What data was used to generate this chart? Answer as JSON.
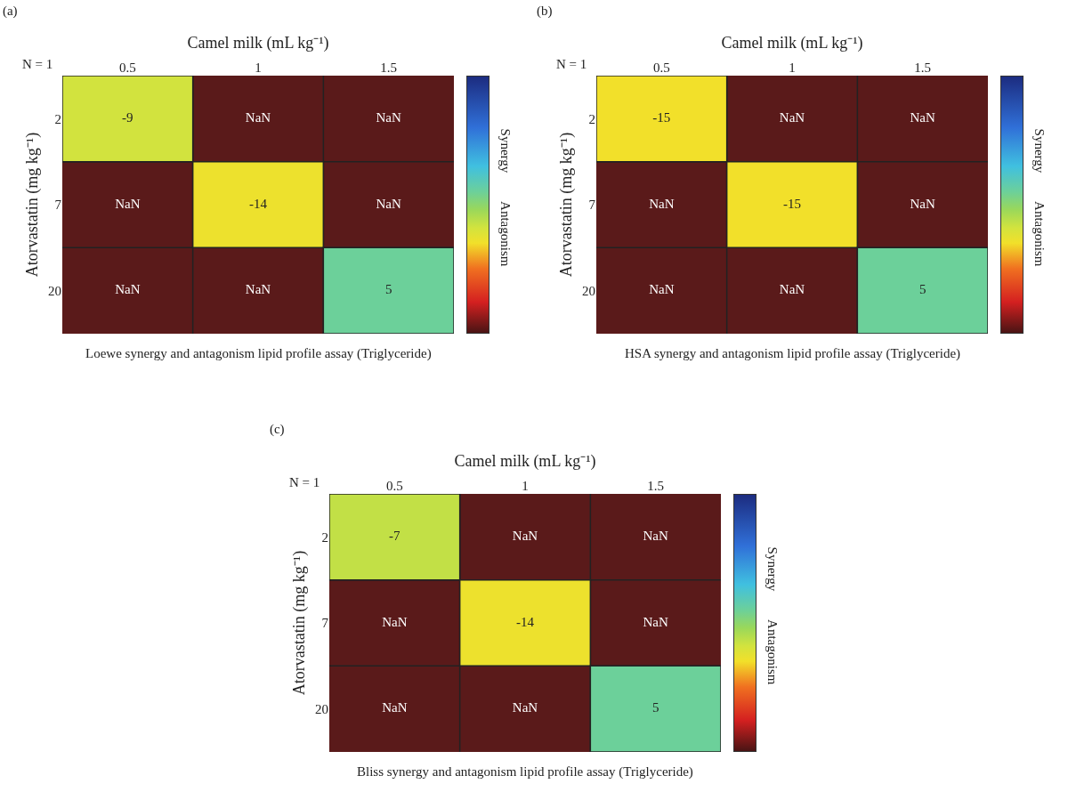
{
  "chart_data": [
    {
      "type": "heatmap",
      "title": "(a)",
      "xlabel": "Camel milk (mL kg⁻¹)",
      "ylabel": "Atorvastatin (mg kg⁻¹)",
      "subtitle": "Loewe synergy and antagonism lipid profile assay (Triglyceride)",
      "categories": [
        "0.5",
        "1",
        "1.5"
      ],
      "y_categories": [
        "2",
        "7",
        "20"
      ],
      "cells": [
        [
          -9,
          null,
          null
        ],
        [
          null,
          -14,
          null
        ],
        [
          null,
          null,
          5
        ]
      ],
      "cell_labels": [
        [
          "-9",
          "NaN",
          "NaN"
        ],
        [
          "NaN",
          "-14",
          "NaN"
        ],
        [
          "NaN",
          "NaN",
          "5"
        ]
      ],
      "annotations": [
        "N = 1",
        "Synergy",
        "Antagonism"
      ]
    },
    {
      "type": "heatmap",
      "title": "(b)",
      "xlabel": "Camel milk (mL kg⁻¹)",
      "ylabel": "Atorvastatin (mg kg⁻¹)",
      "subtitle": "HSA synergy and antagonism lipid profile assay (Triglyceride)",
      "categories": [
        "0.5",
        "1",
        "1.5"
      ],
      "y_categories": [
        "2",
        "7",
        "20"
      ],
      "cells": [
        [
          -15,
          null,
          null
        ],
        [
          null,
          -15,
          null
        ],
        [
          null,
          null,
          5
        ]
      ],
      "cell_labels": [
        [
          "-15",
          "NaN",
          "NaN"
        ],
        [
          "NaN",
          "-15",
          "NaN"
        ],
        [
          "NaN",
          "NaN",
          "5"
        ]
      ],
      "annotations": [
        "N = 1",
        "Synergy",
        "Antagonism"
      ]
    },
    {
      "type": "heatmap",
      "title": "(c)",
      "xlabel": "Camel milk (mL kg⁻¹)",
      "ylabel": "Atorvastatin (mg kg⁻¹)",
      "subtitle": "Bliss synergy and antagonism lipid profile assay (Triglyceride)",
      "categories": [
        "0.5",
        "1",
        "1.5"
      ],
      "y_categories": [
        "2",
        "7",
        "20"
      ],
      "cells": [
        [
          -7,
          null,
          null
        ],
        [
          null,
          -14,
          null
        ],
        [
          null,
          null,
          5
        ]
      ],
      "cell_labels": [
        [
          "-7",
          "NaN",
          "NaN"
        ],
        [
          "NaN",
          "-14",
          "NaN"
        ],
        [
          "NaN",
          "NaN",
          "5"
        ]
      ],
      "annotations": [
        "N = 1",
        "Synergy",
        "Antagonism"
      ]
    }
  ]
}
